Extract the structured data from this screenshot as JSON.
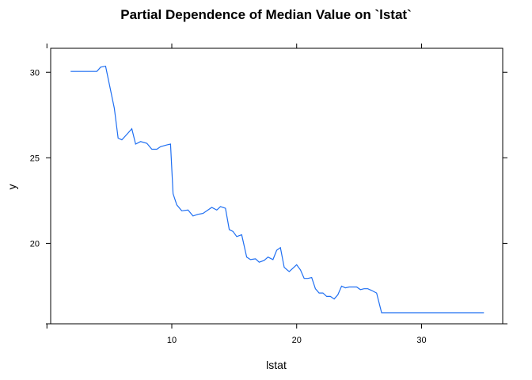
{
  "chart_data": {
    "type": "line",
    "title": "Partial Dependence of Median Value on `lstat`",
    "xlabel": "lstat",
    "ylabel": "y",
    "xlim": [
      0.3,
      36.5
    ],
    "ylim": [
      15.3,
      31.4
    ],
    "xticks": [
      10,
      20,
      30
    ],
    "yticks": [
      20,
      25,
      30
    ],
    "xtick_labels": [
      "10",
      "20",
      "30"
    ],
    "ytick_labels": [
      "20",
      "25",
      "30"
    ],
    "grid": false,
    "line_color": "#1f6ff2",
    "series": [
      {
        "x": [
          1.9,
          2.5,
          3.0,
          3.5,
          4.0,
          4.3,
          4.7,
          5.0,
          5.4,
          5.7,
          6.0,
          6.5,
          6.8,
          7.1,
          7.5,
          8.0,
          8.4,
          8.8,
          9.1,
          9.6,
          9.9,
          10.1,
          10.4,
          10.8,
          11.3,
          11.7,
          12.1,
          12.5,
          12.9,
          13.2,
          13.6,
          13.9,
          14.3,
          14.6,
          14.9,
          15.2,
          15.6,
          16.0,
          16.3,
          16.7,
          17.0,
          17.4,
          17.7,
          18.1,
          18.4,
          18.7,
          19.0,
          19.4,
          19.7,
          20.0,
          20.3,
          20.6,
          20.9,
          21.2,
          21.5,
          21.8,
          22.1,
          22.4,
          22.7,
          23.0,
          23.3,
          23.6,
          23.9,
          24.2,
          24.5,
          24.8,
          25.1,
          25.4,
          25.7,
          26.0,
          26.4,
          26.8,
          35.0
        ],
        "y": [
          30.05,
          30.05,
          30.05,
          30.05,
          30.05,
          30.3,
          30.35,
          29.3,
          27.9,
          26.15,
          26.05,
          26.45,
          26.7,
          25.8,
          25.95,
          25.85,
          25.5,
          25.5,
          25.65,
          25.75,
          25.8,
          22.9,
          22.25,
          21.9,
          21.95,
          21.6,
          21.7,
          21.75,
          21.95,
          22.1,
          21.95,
          22.15,
          22.05,
          20.8,
          20.7,
          20.4,
          20.5,
          19.2,
          19.05,
          19.1,
          18.9,
          19.0,
          19.2,
          19.05,
          19.6,
          19.75,
          18.6,
          18.35,
          18.55,
          18.75,
          18.45,
          17.95,
          17.95,
          18.0,
          17.35,
          17.1,
          17.1,
          16.9,
          16.9,
          16.75,
          17.0,
          17.5,
          17.4,
          17.45,
          17.45,
          17.45,
          17.3,
          17.35,
          17.35,
          17.25,
          17.1,
          15.95,
          15.95
        ]
      }
    ]
  }
}
